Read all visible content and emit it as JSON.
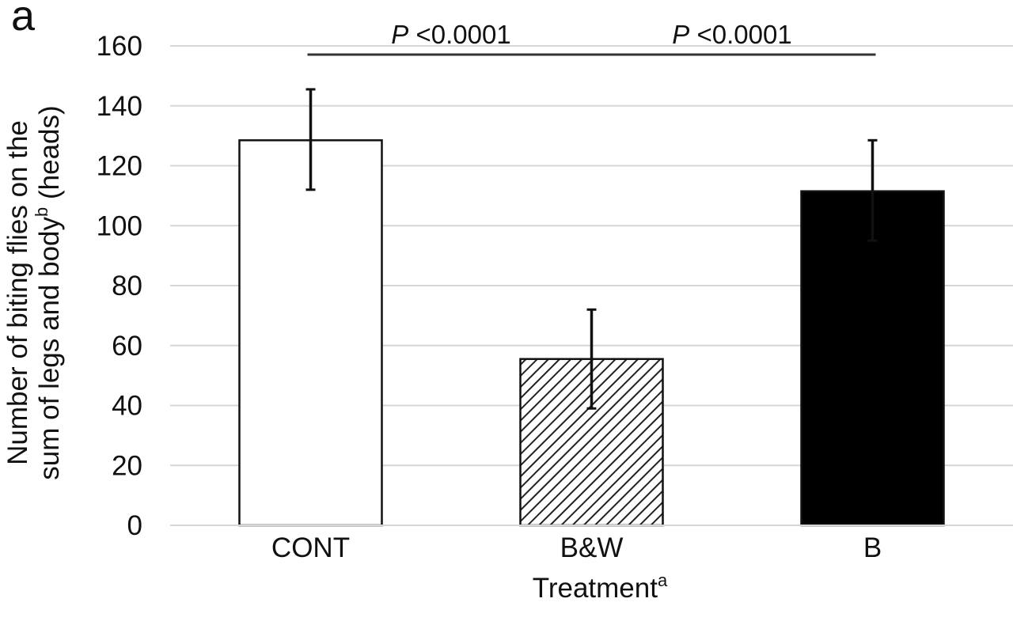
{
  "panel_label": "a",
  "chart_data": {
    "type": "bar",
    "categories": [
      "CONT",
      "B&W",
      "B"
    ],
    "values": [
      128.5,
      55.5,
      111.5
    ],
    "error_bars": [
      {
        "low": 112,
        "high": 145.5
      },
      {
        "low": 39,
        "high": 72
      },
      {
        "low": 95,
        "high": 128.5
      }
    ],
    "bar_styles": [
      {
        "fill": "#ffffff",
        "pattern": "none"
      },
      {
        "fill": "#ffffff",
        "pattern": "diagonal-hatch"
      },
      {
        "fill": "#000000",
        "pattern": "none"
      }
    ],
    "xlabel": "Treatment",
    "xlabel_superscript": "a",
    "ylabel_line1": "Number of biting flies on the",
    "ylabel_line2_prefix": "sum of legs and body",
    "ylabel_line2_superscript": "b",
    "ylabel_line2_suffix": " (heads)",
    "ylim": [
      0,
      160
    ],
    "yticks": [
      0,
      20,
      40,
      60,
      80,
      100,
      120,
      140,
      160
    ],
    "grid": true,
    "annotations": [
      {
        "from": "CONT",
        "to": "B&W",
        "prefix": "P",
        "text": " <0.0001"
      },
      {
        "from": "B&W",
        "to": "B",
        "prefix": "P",
        "text": " <0.0001"
      }
    ]
  }
}
